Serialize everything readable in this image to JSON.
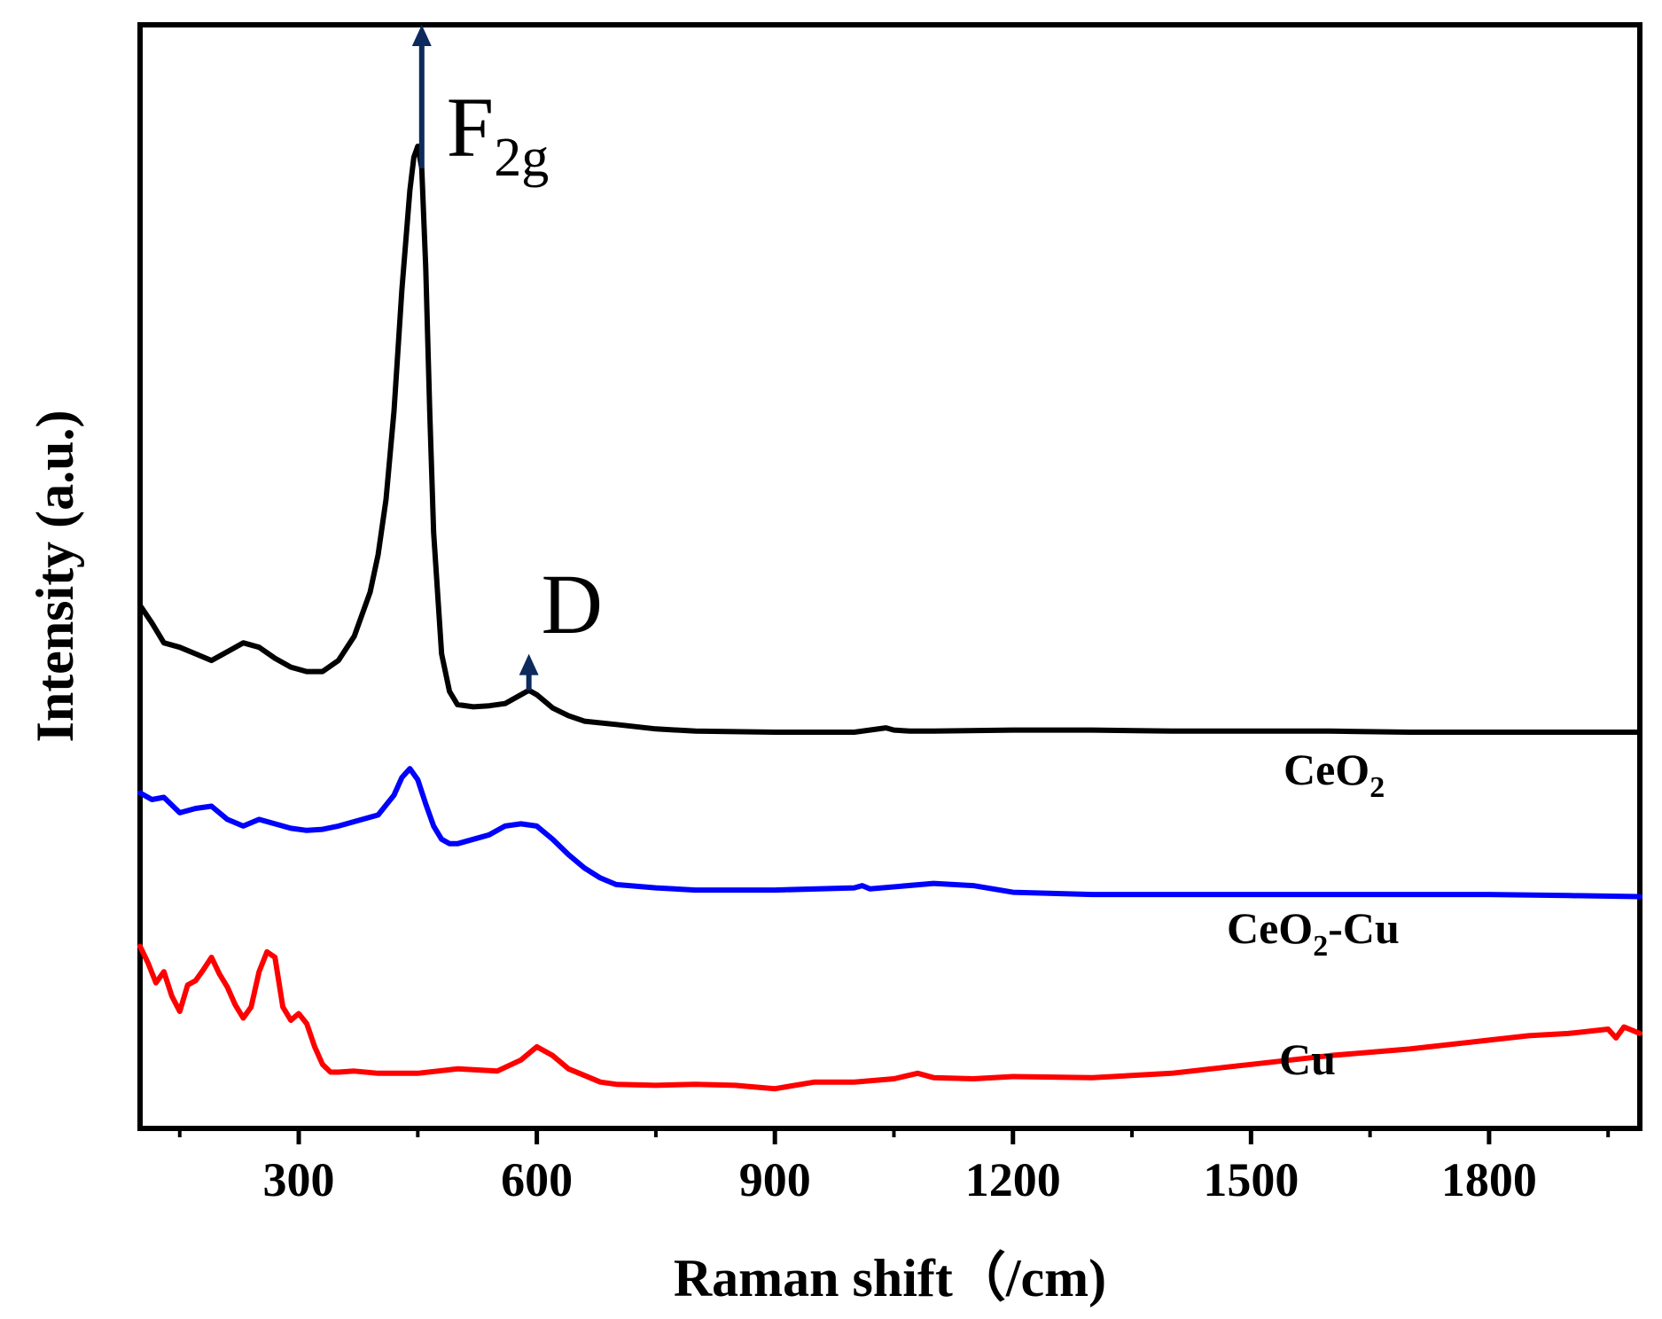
{
  "chart_data": {
    "type": "line",
    "title": "",
    "xlabel": "Raman shift（/cm)",
    "ylabel": "Intensity (a.u.)",
    "xlim": [
      100,
      1990
    ],
    "ylim": [
      0,
      1
    ],
    "xticks": [
      300,
      600,
      900,
      1200,
      1500,
      1800
    ],
    "xtick_labels": [
      "300",
      "600",
      "900",
      "1200",
      "1500",
      "1800"
    ],
    "minor_xticks": [
      150,
      450,
      750,
      1050,
      1350,
      1650,
      1950
    ],
    "y_tick_labels_shown": false,
    "grid": false,
    "legend": "none",
    "series": [
      {
        "name": "CeO2",
        "label_main": "CeO",
        "label_sub": "2",
        "label_suffix": "",
        "color": "#000000",
        "x": [
          100,
          115,
          130,
          150,
          170,
          190,
          210,
          230,
          250,
          270,
          290,
          310,
          330,
          350,
          370,
          390,
          400,
          410,
          420,
          430,
          440,
          445,
          450,
          455,
          460,
          465,
          470,
          480,
          490,
          500,
          520,
          540,
          560,
          580,
          590,
          600,
          620,
          640,
          660,
          700,
          750,
          800,
          900,
          1000,
          1040,
          1050,
          1070,
          1100,
          1200,
          1300,
          1400,
          1500,
          1600,
          1700,
          1800,
          1900,
          1990
        ],
        "values": [
          0.474,
          0.458,
          0.44,
          0.436,
          0.43,
          0.424,
          0.432,
          0.44,
          0.436,
          0.426,
          0.418,
          0.414,
          0.414,
          0.424,
          0.446,
          0.486,
          0.52,
          0.57,
          0.65,
          0.76,
          0.85,
          0.88,
          0.89,
          0.87,
          0.78,
          0.65,
          0.54,
          0.43,
          0.396,
          0.384,
          0.382,
          0.383,
          0.385,
          0.393,
          0.397,
          0.393,
          0.381,
          0.374,
          0.369,
          0.366,
          0.362,
          0.36,
          0.359,
          0.359,
          0.363,
          0.361,
          0.36,
          0.36,
          0.361,
          0.361,
          0.36,
          0.36,
          0.36,
          0.359,
          0.359,
          0.359,
          0.359
        ]
      },
      {
        "name": "CeO2-Cu",
        "label_main": "CeO",
        "label_sub": "2",
        "label_suffix": "-Cu",
        "color": "#0000ff",
        "x": [
          100,
          115,
          130,
          150,
          170,
          190,
          210,
          230,
          250,
          270,
          290,
          310,
          330,
          350,
          370,
          400,
          420,
          430,
          440,
          450,
          460,
          470,
          480,
          490,
          500,
          520,
          540,
          560,
          580,
          600,
          620,
          640,
          660,
          680,
          700,
          750,
          800,
          900,
          1000,
          1010,
          1020,
          1100,
          1150,
          1200,
          1300,
          1400,
          1500,
          1600,
          1700,
          1800,
          1900,
          1990
        ],
        "values": [
          0.304,
          0.298,
          0.3,
          0.286,
          0.29,
          0.292,
          0.28,
          0.274,
          0.28,
          0.276,
          0.272,
          0.27,
          0.271,
          0.274,
          0.278,
          0.284,
          0.302,
          0.318,
          0.326,
          0.316,
          0.294,
          0.274,
          0.262,
          0.258,
          0.258,
          0.262,
          0.266,
          0.274,
          0.276,
          0.274,
          0.262,
          0.248,
          0.236,
          0.227,
          0.221,
          0.218,
          0.216,
          0.216,
          0.218,
          0.22,
          0.217,
          0.222,
          0.22,
          0.214,
          0.212,
          0.212,
          0.212,
          0.212,
          0.212,
          0.212,
          0.211,
          0.21
        ]
      },
      {
        "name": "Cu",
        "label_main": "Cu",
        "label_sub": "",
        "label_suffix": "",
        "color": "#ff0000",
        "x": [
          100,
          110,
          120,
          130,
          140,
          150,
          160,
          170,
          180,
          190,
          200,
          210,
          220,
          230,
          240,
          250,
          260,
          270,
          280,
          290,
          300,
          310,
          320,
          330,
          340,
          350,
          370,
          400,
          450,
          500,
          550,
          580,
          600,
          620,
          640,
          660,
          680,
          700,
          750,
          800,
          850,
          900,
          950,
          1000,
          1050,
          1080,
          1100,
          1150,
          1200,
          1300,
          1400,
          1500,
          1600,
          1700,
          1800,
          1850,
          1900,
          1950,
          1960,
          1970,
          1990
        ],
        "values": [
          0.165,
          0.15,
          0.132,
          0.142,
          0.12,
          0.106,
          0.13,
          0.134,
          0.144,
          0.155,
          0.14,
          0.128,
          0.112,
          0.1,
          0.11,
          0.142,
          0.16,
          0.155,
          0.11,
          0.098,
          0.104,
          0.095,
          0.074,
          0.058,
          0.051,
          0.051,
          0.052,
          0.05,
          0.05,
          0.054,
          0.052,
          0.062,
          0.074,
          0.066,
          0.054,
          0.048,
          0.042,
          0.04,
          0.039,
          0.04,
          0.039,
          0.036,
          0.042,
          0.042,
          0.045,
          0.05,
          0.046,
          0.045,
          0.047,
          0.046,
          0.05,
          0.058,
          0.066,
          0.072,
          0.08,
          0.084,
          0.086,
          0.09,
          0.082,
          0.092,
          0.086
        ]
      }
    ],
    "annotations": [
      {
        "name": "F2g",
        "main": "F",
        "sub": "2g",
        "x": 455,
        "y_start": 0.87,
        "y_end": 1.0,
        "color": "#0d2a5c"
      },
      {
        "name": "D",
        "main": "D",
        "sub": "",
        "x": 590,
        "y_start": 0.397,
        "y_end": 0.43,
        "color": "#0d2a5c"
      }
    ]
  }
}
